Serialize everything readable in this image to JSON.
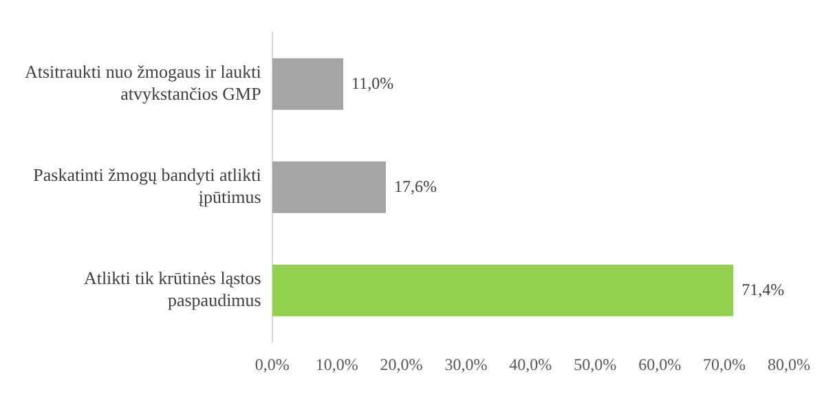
{
  "chart_data": {
    "type": "bar",
    "orientation": "horizontal",
    "categories": [
      "Atsitraukti nuo žmogaus ir laukti atvykstančios GMP",
      "Paskatinti žmogų bandyti atlikti įpūtimus",
      "Atlikti tik krūtinės ląstos paspaudimus"
    ],
    "values": [
      11.0,
      17.6,
      71.4
    ],
    "colors": [
      "#a5a5a5",
      "#a5a5a5",
      "#92d050"
    ],
    "value_labels": [
      "11,0%",
      "17,6%",
      "71,4%"
    ],
    "xlim": [
      0,
      80
    ],
    "xticks": [
      {
        "value": 0,
        "label": "0,0%"
      },
      {
        "value": 10,
        "label": "10,0%"
      },
      {
        "value": 20,
        "label": "20,0%"
      },
      {
        "value": 30,
        "label": "30,0%"
      },
      {
        "value": 40,
        "label": "40,0%"
      },
      {
        "value": 50,
        "label": "50,0%"
      },
      {
        "value": 60,
        "label": "60,0%"
      },
      {
        "value": 70,
        "label": "70,0%"
      },
      {
        "value": 80,
        "label": "80,0%"
      }
    ],
    "grid": false,
    "legend": false
  }
}
